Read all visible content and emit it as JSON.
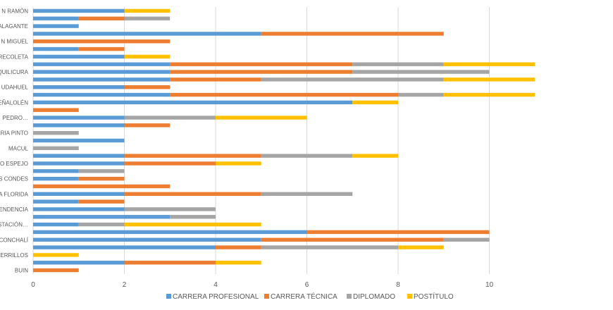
{
  "chart_data": {
    "type": "bar",
    "orientation": "horizontal",
    "stacked": true,
    "title": "",
    "xlabel": "",
    "ylabel": "",
    "xlim": [
      0,
      12
    ],
    "x_ticks": [
      0,
      2,
      4,
      6,
      8,
      10
    ],
    "grid": "vertical",
    "legend_position": "bottom",
    "categories": [
      "SAN RAMÓN",
      "",
      "TALAGANTE",
      "",
      "SAN MIGUEL",
      "",
      "RECOLETA",
      "",
      "QUILICURA",
      "",
      "PUDAHUEL",
      "",
      "PEÑALOLÉN",
      "",
      "PEDRO…",
      "",
      "PEDRO AGUIRRE CERDA / MARIA PINTO",
      "",
      "MACUL",
      "",
      "LO ESPEJO",
      "",
      "LAS CONDES",
      "",
      "LA FLORIDA",
      "",
      "INDEPENDENCIA",
      "",
      "ESTACIÓN…",
      "",
      "CONCHALÍ",
      "",
      "CERRILLOS",
      "",
      "BUIN"
    ],
    "category_labels_visible": [
      "N RAMÓN",
      "",
      "ALAGANTE",
      "",
      "N MIGUEL",
      "",
      "RECOLETA",
      "",
      "QUILICURA",
      "",
      "UDAHUEL",
      "",
      "EÑALOLÉN",
      "",
      "PEDRO…",
      "",
      "RIA PINTO",
      "",
      "MACUL",
      "",
      "LO ESPEJO",
      "",
      "S CONDES",
      "",
      "A FLORIDA",
      "",
      "ENDENCIA",
      "",
      "ESTACIÓN…",
      "",
      "CONCHALÍ",
      "",
      "CERRILLOS",
      "",
      "BUIN"
    ],
    "series": [
      {
        "name": "CARRERA PROFESIONAL",
        "color": "#5B9BD5",
        "values": [
          2,
          1,
          1,
          5,
          0,
          1,
          2,
          3,
          3,
          3,
          2,
          3,
          7,
          0,
          2,
          2,
          0,
          2,
          0,
          2,
          2,
          1,
          1,
          0,
          2,
          1,
          2,
          3,
          1,
          6,
          5,
          4,
          0,
          2,
          0
        ]
      },
      {
        "name": "CARRERA TÉCNICA",
        "color": "#ED7D31",
        "values": [
          0,
          1,
          0,
          4,
          3,
          1,
          0,
          4,
          4,
          2,
          1,
          5,
          0,
          1,
          0,
          1,
          0,
          0,
          0,
          3,
          2,
          0,
          1,
          3,
          3,
          1,
          0,
          0,
          0,
          4,
          4,
          1,
          0,
          2,
          1
        ]
      },
      {
        "name": "DIPLOMADO",
        "color": "#A5A5A5",
        "values": [
          0,
          1,
          0,
          0,
          0,
          0,
          0,
          2,
          3,
          4,
          0,
          1,
          0,
          0,
          2,
          0,
          1,
          0,
          1,
          2,
          0,
          1,
          0,
          0,
          2,
          0,
          2,
          1,
          1,
          0,
          1,
          3,
          0,
          0,
          0
        ]
      },
      {
        "name": "POSTÍTULO",
        "color": "#FFC000",
        "values": [
          1,
          0,
          0,
          0,
          0,
          0,
          1,
          2,
          0,
          2,
          0,
          2,
          1,
          0,
          2,
          0,
          0,
          0,
          0,
          1,
          1,
          0,
          0,
          0,
          0,
          0,
          0,
          0,
          3,
          0,
          0,
          1,
          1,
          1,
          0
        ]
      }
    ]
  }
}
